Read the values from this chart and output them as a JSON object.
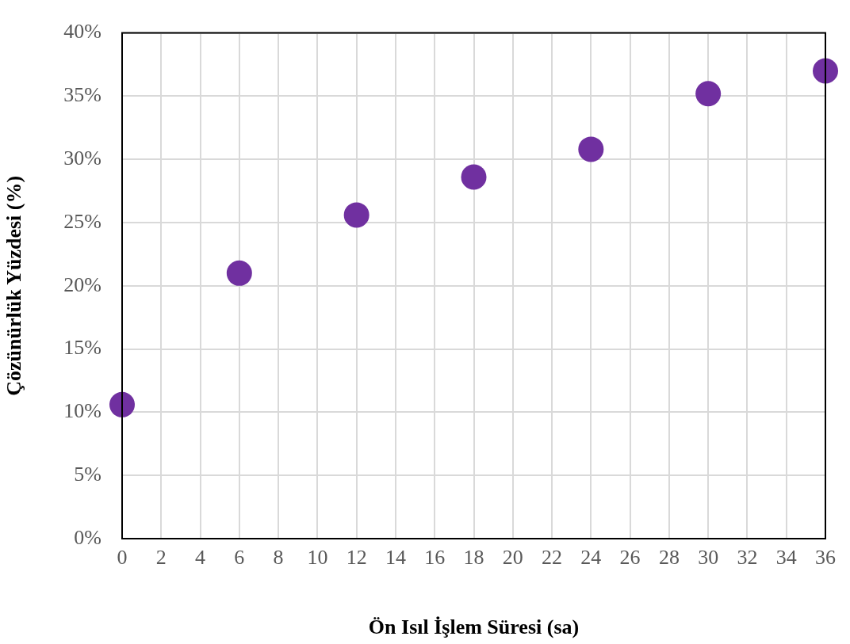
{
  "chart_data": {
    "type": "scatter",
    "xlabel": "Ön Isıl İşlem Süresi (sa)",
    "ylabel": "Çözünürlük Yüzdesi (%)",
    "x": [
      0,
      6,
      12,
      18,
      24,
      30,
      36
    ],
    "series": [
      {
        "color": "#7030a0",
        "values": [
          10.6,
          21.0,
          25.6,
          28.6,
          30.8,
          35.2,
          37.0
        ]
      }
    ],
    "xlim": [
      0,
      36
    ],
    "xticks": [
      0,
      2,
      4,
      6,
      8,
      10,
      12,
      14,
      16,
      18,
      20,
      22,
      24,
      26,
      28,
      30,
      32,
      34,
      36
    ],
    "ylim": [
      0,
      40
    ],
    "yticks": [
      {
        "value": 0,
        "label": "0%"
      },
      {
        "value": 5,
        "label": "5%"
      },
      {
        "value": 10,
        "label": "10%"
      },
      {
        "value": 15,
        "label": "15%"
      },
      {
        "value": 20,
        "label": "20%"
      },
      {
        "value": 25,
        "label": "25%"
      },
      {
        "value": 30,
        "label": "30%"
      },
      {
        "value": 35,
        "label": "35%"
      },
      {
        "value": 40,
        "label": "40%"
      }
    ],
    "grid": true,
    "marker": "circle"
  }
}
